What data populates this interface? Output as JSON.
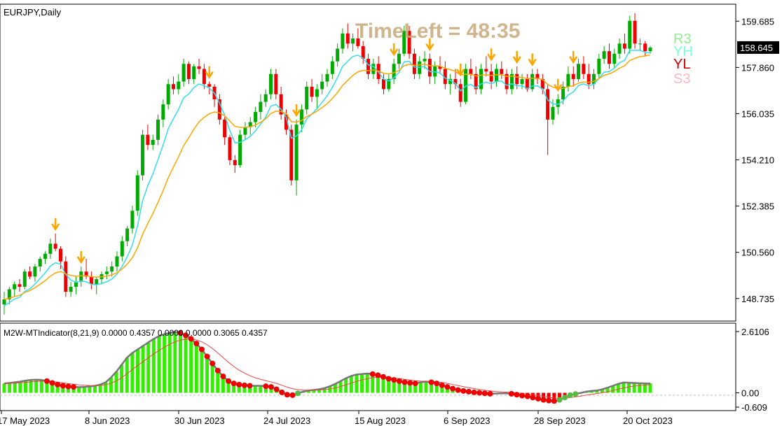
{
  "window": {
    "title": "EURJPY,Daily"
  },
  "timeleft": "TimeLeft = 48:35",
  "pivot_labels": [
    {
      "text": "R3",
      "color": "#90EE90"
    },
    {
      "text": "YH",
      "color": "#7FFFD4"
    },
    {
      "text": "YL",
      "color": "#CC0000"
    },
    {
      "text": "S3",
      "color": "#FFB6C1"
    }
  ],
  "price_axis": {
    "ticks": [
      "159.685",
      "157.860",
      "156.035",
      "154.210",
      "152.385",
      "150.560",
      "148.735"
    ],
    "current": "158.645"
  },
  "indicator": {
    "label": "M2W-MTIndicator(8,21,9) 0.0000 0.4357 0.0000 0.0000 0.3065 0.4357",
    "ticks": [
      "2.6106",
      "0.00",
      "-0.609"
    ]
  },
  "time_axis": [
    "17 May 2023",
    "8 Jun 2023",
    "30 Jun 2023",
    "24 Jul 2023",
    "15 Aug 2023",
    "6 Sep 2023",
    "28 Sep 2023",
    "20 Oct 2023"
  ],
  "colors": {
    "bull": "#00aa00",
    "bear": "#ee0000",
    "signal": "#FFA500",
    "cyan": "#33DDEE",
    "hist_pos": "#33EE00",
    "hist_neg": "#EE0000",
    "dot_red": "#EE0000",
    "dot_green": "#55BB44",
    "macd_line": "#777777",
    "slow_line": "#EE4444"
  },
  "chart_data": {
    "type": "candlestick",
    "title": "EURJPY,Daily",
    "ylim": [
      147.9,
      160.3
    ],
    "candles": [
      [
        148.5,
        149.0,
        148.1,
        148.7
      ],
      [
        148.7,
        149.2,
        148.5,
        149.1
      ],
      [
        149.1,
        149.4,
        148.8,
        149.3
      ],
      [
        149.3,
        149.5,
        149.0,
        149.2
      ],
      [
        149.2,
        149.9,
        149.1,
        149.8
      ],
      [
        149.8,
        150.0,
        149.5,
        149.6
      ],
      [
        149.6,
        150.1,
        149.4,
        150.0
      ],
      [
        150.0,
        150.4,
        149.8,
        150.3
      ],
      [
        150.3,
        150.6,
        150.1,
        150.5
      ],
      [
        150.5,
        151.1,
        150.3,
        150.9
      ],
      [
        150.9,
        151.3,
        150.6,
        150.7
      ],
      [
        150.7,
        150.8,
        149.9,
        150.2
      ],
      [
        150.2,
        150.4,
        148.8,
        149.0
      ],
      [
        149.0,
        149.4,
        148.8,
        149.2
      ],
      [
        149.2,
        149.6,
        148.9,
        149.4
      ],
      [
        149.4,
        150.0,
        149.2,
        149.8
      ],
      [
        149.8,
        150.3,
        149.5,
        149.6
      ],
      [
        149.6,
        149.8,
        149.1,
        149.3
      ],
      [
        149.3,
        149.6,
        148.9,
        149.5
      ],
      [
        149.5,
        149.8,
        149.3,
        149.7
      ],
      [
        149.7,
        150.0,
        149.5,
        149.8
      ],
      [
        149.8,
        150.2,
        149.6,
        150.0
      ],
      [
        150.0,
        150.6,
        149.8,
        150.4
      ],
      [
        150.4,
        151.2,
        150.2,
        151.0
      ],
      [
        151.0,
        151.6,
        150.8,
        151.5
      ],
      [
        151.5,
        152.4,
        151.3,
        152.2
      ],
      [
        152.2,
        153.8,
        152.0,
        153.6
      ],
      [
        153.6,
        155.4,
        153.4,
        155.2
      ],
      [
        155.2,
        155.6,
        154.6,
        154.8
      ],
      [
        154.8,
        155.2,
        154.6,
        155.0
      ],
      [
        155.0,
        156.0,
        154.8,
        155.8
      ],
      [
        155.8,
        156.6,
        155.5,
        156.4
      ],
      [
        156.4,
        157.4,
        156.2,
        157.2
      ],
      [
        157.2,
        157.5,
        156.8,
        157.0
      ],
      [
        157.0,
        157.6,
        156.8,
        157.3
      ],
      [
        157.3,
        158.2,
        157.1,
        158.0
      ],
      [
        158.0,
        158.1,
        157.2,
        157.4
      ],
      [
        157.4,
        158.0,
        157.2,
        157.9
      ],
      [
        157.9,
        158.2,
        157.6,
        157.8
      ],
      [
        157.8,
        158.0,
        157.0,
        157.2
      ],
      [
        157.2,
        157.3,
        156.8,
        157.1
      ],
      [
        157.1,
        157.2,
        156.3,
        156.6
      ],
      [
        156.6,
        156.8,
        155.6,
        155.8
      ],
      [
        155.8,
        155.9,
        154.8,
        155.1
      ],
      [
        155.1,
        155.2,
        154.0,
        154.2
      ],
      [
        154.2,
        154.4,
        153.7,
        154.0
      ],
      [
        154.0,
        155.4,
        153.9,
        155.2
      ],
      [
        155.2,
        155.7,
        155.0,
        155.5
      ],
      [
        155.5,
        155.9,
        155.2,
        155.7
      ],
      [
        155.7,
        156.3,
        155.5,
        156.1
      ],
      [
        156.1,
        156.8,
        155.8,
        156.5
      ],
      [
        156.5,
        157.0,
        156.3,
        156.8
      ],
      [
        156.8,
        157.8,
        156.6,
        157.6
      ],
      [
        157.6,
        157.8,
        156.6,
        156.8
      ],
      [
        156.8,
        157.1,
        155.8,
        156.0
      ],
      [
        156.0,
        156.2,
        155.2,
        155.4
      ],
      [
        155.4,
        155.6,
        153.2,
        153.4
      ],
      [
        153.4,
        155.8,
        152.8,
        155.6
      ],
      [
        155.6,
        156.4,
        155.3,
        156.2
      ],
      [
        156.2,
        157.3,
        156.0,
        157.1
      ],
      [
        157.1,
        157.4,
        156.5,
        156.7
      ],
      [
        156.7,
        157.2,
        156.2,
        157.0
      ],
      [
        157.0,
        157.6,
        156.8,
        157.3
      ],
      [
        157.3,
        157.8,
        157.1,
        157.6
      ],
      [
        157.6,
        158.3,
        157.4,
        158.1
      ],
      [
        158.1,
        158.8,
        157.9,
        158.6
      ],
      [
        158.6,
        159.4,
        158.4,
        159.2
      ],
      [
        159.2,
        159.6,
        158.6,
        158.8
      ],
      [
        158.8,
        159.2,
        158.5,
        159.0
      ],
      [
        159.0,
        159.4,
        158.6,
        158.7
      ],
      [
        158.7,
        158.9,
        158.0,
        158.2
      ],
      [
        158.2,
        158.4,
        157.4,
        157.6
      ],
      [
        157.6,
        158.2,
        157.4,
        158.0
      ],
      [
        158.0,
        158.3,
        157.2,
        157.4
      ],
      [
        157.4,
        157.6,
        156.8,
        157.0
      ],
      [
        157.0,
        157.6,
        156.9,
        157.4
      ],
      [
        157.4,
        158.2,
        157.2,
        158.0
      ],
      [
        158.0,
        158.6,
        157.8,
        158.4
      ],
      [
        158.4,
        159.5,
        158.3,
        159.3
      ],
      [
        159.3,
        159.5,
        158.2,
        158.4
      ],
      [
        158.4,
        158.6,
        157.4,
        157.6
      ],
      [
        157.6,
        158.3,
        157.4,
        158.1
      ],
      [
        158.1,
        158.5,
        157.8,
        158.2
      ],
      [
        158.2,
        158.4,
        157.2,
        157.5
      ],
      [
        157.5,
        158.1,
        157.2,
        157.9
      ],
      [
        157.9,
        158.3,
        157.6,
        157.8
      ],
      [
        157.8,
        158.1,
        157.0,
        157.2
      ],
      [
        157.2,
        157.6,
        156.8,
        157.4
      ],
      [
        157.4,
        157.8,
        157.0,
        157.2
      ],
      [
        157.2,
        157.4,
        156.3,
        156.5
      ],
      [
        156.5,
        158.0,
        156.4,
        157.8
      ],
      [
        157.8,
        158.2,
        157.4,
        157.6
      ],
      [
        157.6,
        157.9,
        156.8,
        157.0
      ],
      [
        157.0,
        158.0,
        156.8,
        157.8
      ],
      [
        157.8,
        158.3,
        157.5,
        157.7
      ],
      [
        157.7,
        158.0,
        157.0,
        157.3
      ],
      [
        157.3,
        158.0,
        157.1,
        157.8
      ],
      [
        157.8,
        158.1,
        157.4,
        157.6
      ],
      [
        157.6,
        157.8,
        156.8,
        157.0
      ],
      [
        157.0,
        157.8,
        156.8,
        157.6
      ],
      [
        157.6,
        157.9,
        157.0,
        157.2
      ],
      [
        157.2,
        157.6,
        157.0,
        157.4
      ],
      [
        157.4,
        157.6,
        156.9,
        157.0
      ],
      [
        157.0,
        157.8,
        156.9,
        157.6
      ],
      [
        157.6,
        157.8,
        157.2,
        157.4
      ],
      [
        157.4,
        157.6,
        156.8,
        157.0
      ],
      [
        157.0,
        157.2,
        154.4,
        155.8
      ],
      [
        155.8,
        156.6,
        155.6,
        156.3
      ],
      [
        156.3,
        156.8,
        156.0,
        156.6
      ],
      [
        156.6,
        157.3,
        156.4,
        157.1
      ],
      [
        157.1,
        157.9,
        156.9,
        157.6
      ],
      [
        157.6,
        157.9,
        157.1,
        157.4
      ],
      [
        157.4,
        158.2,
        157.3,
        158.0
      ],
      [
        158.0,
        158.3,
        157.4,
        157.6
      ],
      [
        157.6,
        158.0,
        157.0,
        157.2
      ],
      [
        157.2,
        157.8,
        157.0,
        157.6
      ],
      [
        157.6,
        158.4,
        157.4,
        158.2
      ],
      [
        158.2,
        158.7,
        158.0,
        158.5
      ],
      [
        158.5,
        158.8,
        157.8,
        158.0
      ],
      [
        158.0,
        158.6,
        157.8,
        158.4
      ],
      [
        158.4,
        159.0,
        158.2,
        158.8
      ],
      [
        158.8,
        159.2,
        158.4,
        158.6
      ],
      [
        158.6,
        159.9,
        158.4,
        159.7
      ],
      [
        159.7,
        160.0,
        158.6,
        158.8
      ],
      [
        158.8,
        159.0,
        158.5,
        158.8
      ],
      [
        158.8,
        158.9,
        158.3,
        158.5
      ],
      [
        158.5,
        158.7,
        158.4,
        158.64
      ]
    ],
    "indicator_histogram": [
      0.4,
      0.42,
      0.45,
      0.48,
      0.52,
      0.55,
      0.56,
      0.55,
      0.5,
      0.42,
      0.35,
      0.3,
      0.27,
      0.25,
      0.24,
      0.25,
      0.27,
      0.3,
      0.35,
      0.45,
      0.65,
      0.9,
      1.2,
      1.5,
      1.7,
      1.85,
      2.0,
      2.15,
      2.3,
      2.42,
      2.5,
      2.55,
      2.6,
      2.55,
      2.45,
      2.3,
      2.1,
      1.85,
      1.55,
      1.25,
      0.95,
      0.7,
      0.5,
      0.4,
      0.35,
      0.32,
      0.3,
      0.3,
      0.3,
      0.28,
      0.25,
      0.15,
      0.02,
      -0.08,
      -0.1,
      -0.02,
      0.05,
      0.1,
      0.12,
      0.15,
      0.2,
      0.28,
      0.38,
      0.5,
      0.62,
      0.72,
      0.78,
      0.8,
      0.82,
      0.8,
      0.75,
      0.68,
      0.6,
      0.55,
      0.5,
      0.45,
      0.42,
      0.4,
      0.45,
      0.48,
      0.45,
      0.4,
      0.32,
      0.25,
      0.18,
      0.12,
      0.08,
      0.05,
      0.02,
      0.0,
      -0.02,
      -0.04,
      -0.03,
      -0.02,
      -0.02,
      -0.04,
      -0.08,
      -0.12,
      -0.15,
      -0.2,
      -0.25,
      -0.3,
      -0.33,
      -0.35,
      -0.3,
      -0.2,
      -0.1,
      -0.05,
      0.0,
      0.05,
      0.08,
      0.1,
      0.15,
      0.22,
      0.3,
      0.38,
      0.44,
      0.43,
      0.42,
      0.41,
      0.4,
      0.4
    ]
  }
}
